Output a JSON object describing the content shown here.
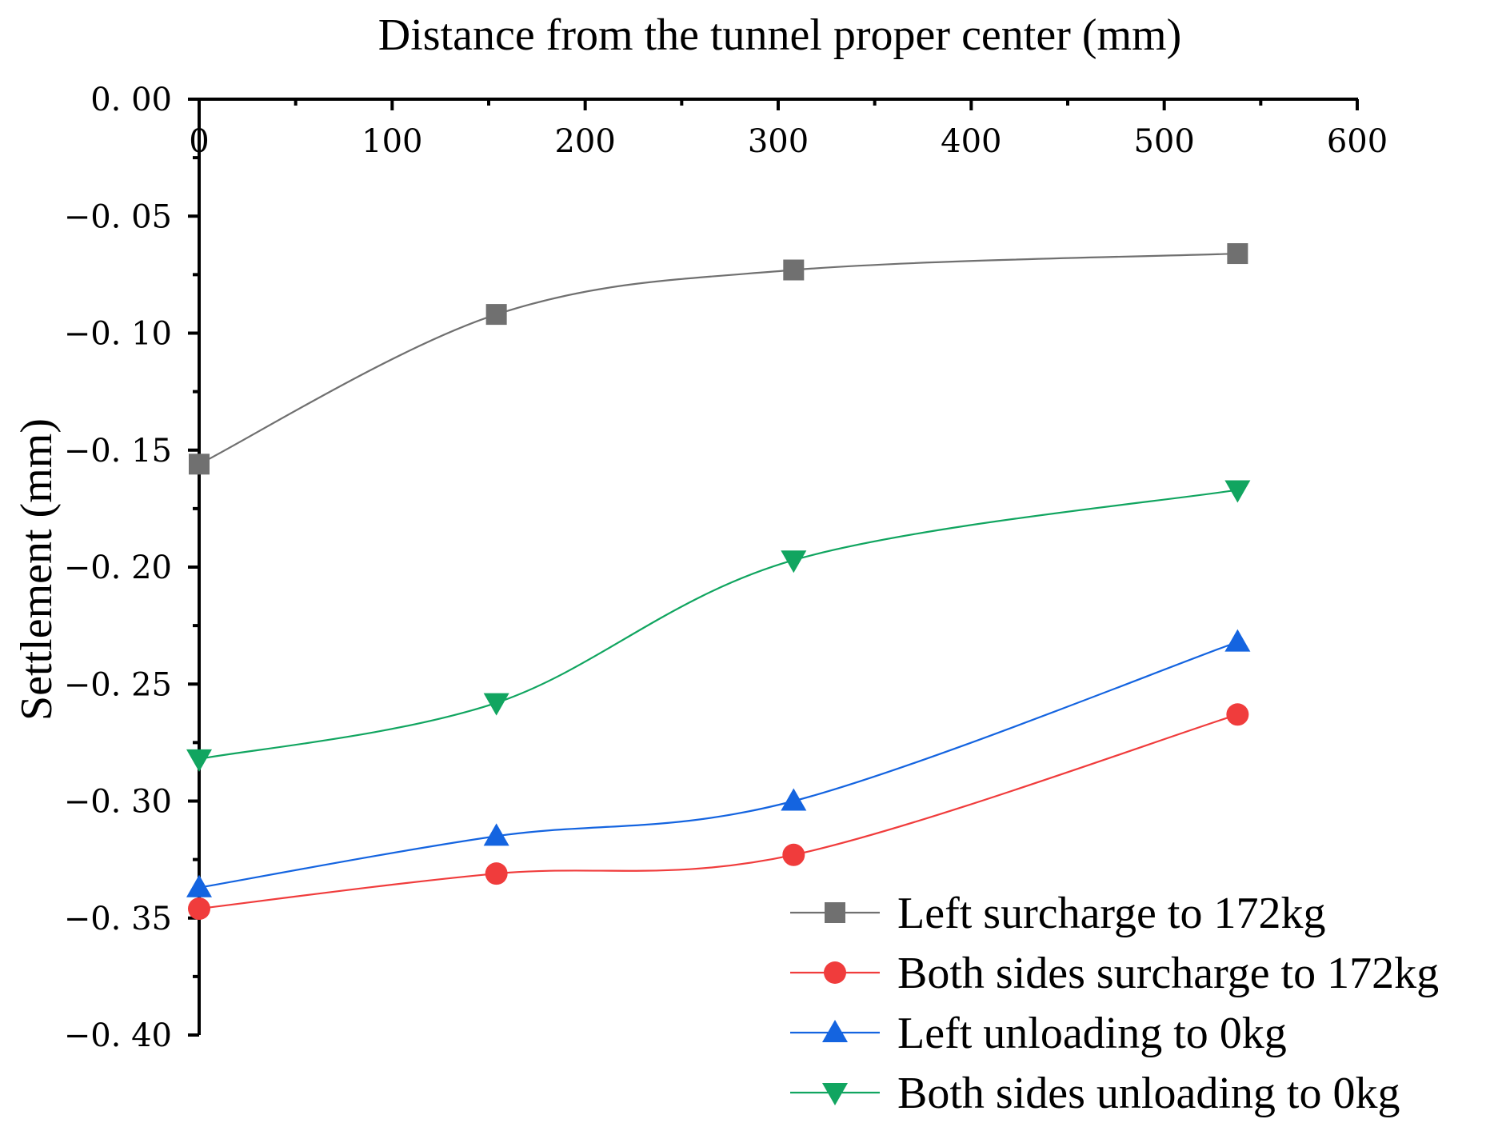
{
  "chart_data": {
    "type": "line",
    "title": "",
    "xlabel": "Distance from the tunnel proper center (mm)",
    "ylabel": "Settlement (mm)",
    "xlim": [
      0,
      600
    ],
    "ylim": [
      -0.4,
      0.0
    ],
    "x_ticks": [
      0,
      100,
      200,
      300,
      400,
      500,
      600
    ],
    "x_tick_labels": [
      "0",
      "100",
      "200",
      "300",
      "400",
      "500",
      "600"
    ],
    "y_ticks": [
      0.0,
      -0.05,
      -0.1,
      -0.15,
      -0.2,
      -0.25,
      -0.3,
      -0.35,
      -0.4
    ],
    "y_tick_labels": [
      "0. 00",
      "−0. 05",
      "−0. 10",
      "−0. 15",
      "−0. 20",
      "−0. 25",
      "−0. 30",
      "−0. 35",
      "−0. 40"
    ],
    "x_axis_position": "top",
    "grid": false,
    "legend_position": "bottom-right",
    "x": [
      0,
      154,
      308,
      538
    ],
    "series": [
      {
        "name": "Left surcharge to 172kg",
        "values": [
          -0.156,
          -0.092,
          -0.073,
          -0.066
        ],
        "color": "#707070",
        "marker": "square"
      },
      {
        "name": "Both sides surcharge to 172kg",
        "values": [
          -0.346,
          -0.331,
          -0.323,
          -0.263
        ],
        "color": "#f03c3c",
        "marker": "circle"
      },
      {
        "name": "Left unloading to 0kg",
        "values": [
          -0.337,
          -0.315,
          -0.3,
          -0.232
        ],
        "color": "#1464e0",
        "marker": "triangle-up"
      },
      {
        "name": "Both sides unloading to 0kg",
        "values": [
          -0.282,
          -0.258,
          -0.197,
          -0.167
        ],
        "color": "#11a560",
        "marker": "triangle-down"
      }
    ]
  }
}
